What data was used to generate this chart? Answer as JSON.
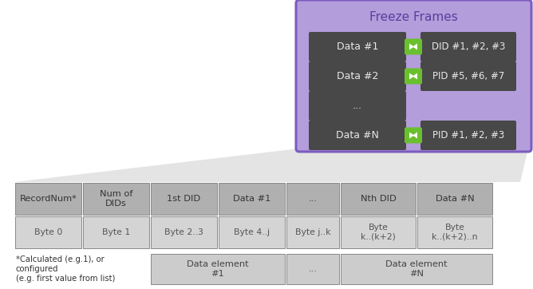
{
  "bg_color": "#ffffff",
  "freeze_box_color": "#b39ddb",
  "freeze_box_border": "#7c5cbf",
  "freeze_title": "Freeze Frames",
  "freeze_title_color": "#5a3e9e",
  "freeze_rows": [
    {
      "label": "Data #1",
      "right_label": "DID #1, #2, #3",
      "has_arrow": true
    },
    {
      "label": "Data #2",
      "right_label": "PID #5, #6, #7",
      "has_arrow": true
    },
    {
      "label": "...",
      "right_label": null,
      "has_arrow": false
    },
    {
      "label": "Data #N",
      "right_label": "PID #1, #2, #3",
      "has_arrow": true
    }
  ],
  "dark_cell_color": "#484848",
  "dark_cell_text": "#e8e8e8",
  "table_header_color": "#b0b0b0",
  "table_row_color": "#d4d4d4",
  "table_border_color": "#888888",
  "table_headers": [
    "RecordNum*",
    "Num of\nDIDs",
    "1st DID",
    "Data #1",
    "...",
    "Nth DID",
    "Data #N"
  ],
  "table_row1": [
    "Byte 0",
    "Byte 1",
    "Byte 2..3",
    "Byte 4..j",
    "Byte j..k",
    "Byte\nk..(k+2)",
    "Byte\nk..(k+2)..n"
  ],
  "bottom_note": "*Calculated (e.g.1), or\nconfigured\n(e.g. first value from list)",
  "bottom_cells": [
    "Data element\n#1",
    "...",
    "Data element\n#N"
  ],
  "bottom_cell_color": "#cccccc",
  "arrow_color": "#6abf2e",
  "funnel_color": "#e4e4e4"
}
